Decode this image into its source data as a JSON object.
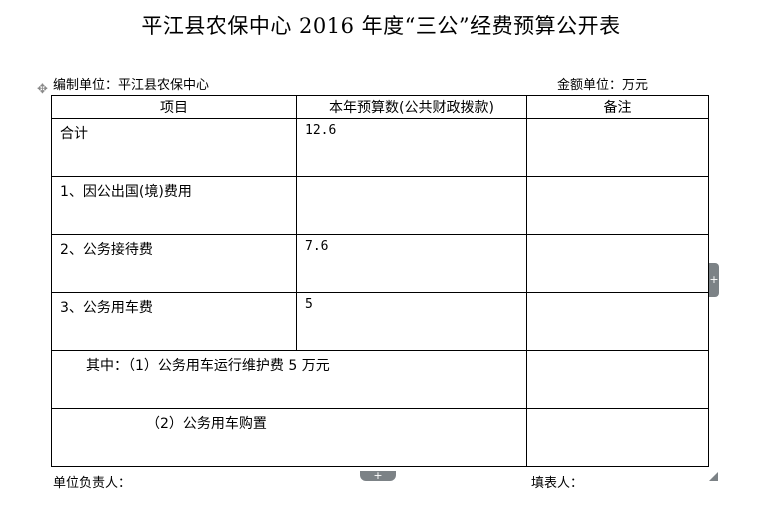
{
  "title": "平江县农保中心 2016 年度“三公”经费预算公开表",
  "unit": "编制单位：平江县农保中心",
  "currency": "金额单位：万元",
  "headers": [
    "项目",
    "本年预算数(公共财政拨款)",
    "备注"
  ],
  "rows": [
    {
      "item": "合计",
      "amount": "12.6",
      "note": ""
    },
    {
      "item": "1、因公出国(境)费用",
      "amount": "",
      "note": ""
    },
    {
      "item": "2、公务接待费",
      "amount": "7.6",
      "note": ""
    },
    {
      "item": "3、公务用车费",
      "amount": "5",
      "note": ""
    }
  ],
  "sub_rows": [
    {
      "item": "其中：（1）公务用车运行维护费 5 万元",
      "note": ""
    },
    {
      "item": "（2）公务用车购置",
      "note": ""
    }
  ],
  "footer": {
    "leader": "单位负责人：",
    "filler": "填表人："
  }
}
